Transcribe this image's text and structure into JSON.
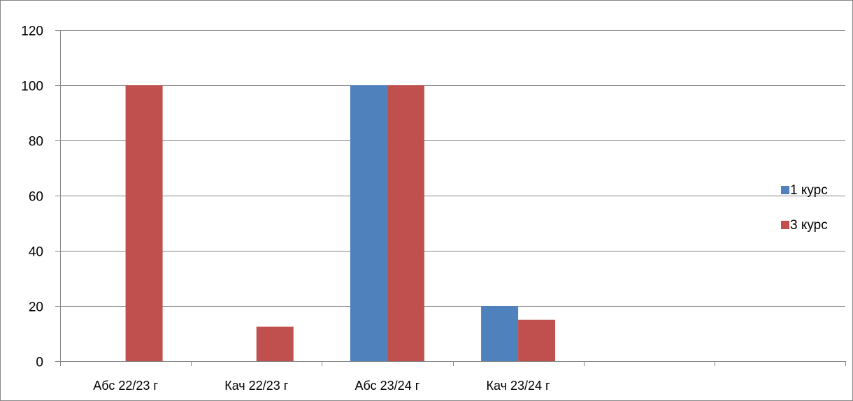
{
  "chart_data": {
    "type": "bar",
    "categories": [
      "Абс 22/23 г",
      "Кач 22/23 г",
      "Абс 23/24 г",
      "Кач 23/24 г",
      "",
      ""
    ],
    "series": [
      {
        "name": "1 курс",
        "color": "#4F81BD",
        "values": [
          0,
          0,
          100,
          20,
          null,
          null
        ]
      },
      {
        "name": "3 курс",
        "color": "#C0504D",
        "values": [
          100,
          12.5,
          100,
          15,
          null,
          null
        ]
      }
    ],
    "ylim": [
      0,
      120
    ],
    "yticks": [
      0,
      20,
      40,
      60,
      80,
      100,
      120
    ],
    "grid": true,
    "legend_position": "right"
  }
}
